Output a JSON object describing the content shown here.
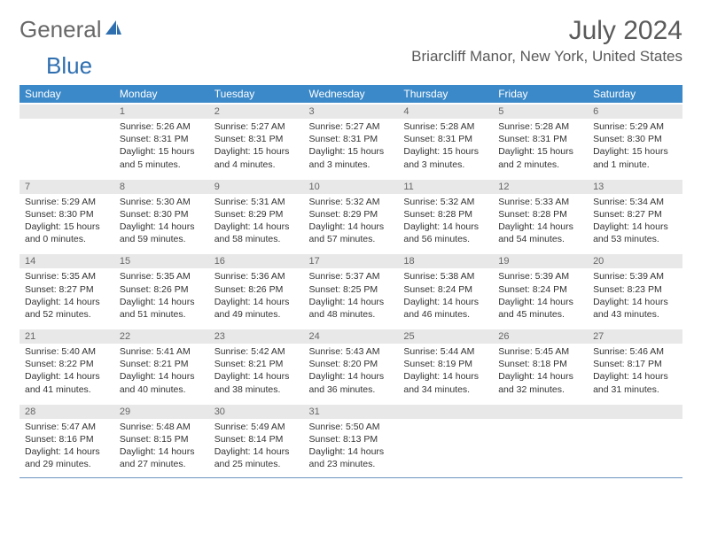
{
  "brand": {
    "part1": "General",
    "part2": "Blue"
  },
  "title": "July 2024",
  "location": "Briarcliff Manor, New York, United States",
  "headers": [
    "Sunday",
    "Monday",
    "Tuesday",
    "Wednesday",
    "Thursday",
    "Friday",
    "Saturday"
  ],
  "colors": {
    "header_bg": "#3b89c9",
    "numrow_bg": "#e8e8e8",
    "rule": "#6b94bf",
    "text": "#333333",
    "title": "#5a5a5a"
  },
  "weeks": [
    {
      "nums": [
        "",
        "1",
        "2",
        "3",
        "4",
        "5",
        "6"
      ],
      "cells": [
        {
          "sunrise": "",
          "sunset": "",
          "daylight": ""
        },
        {
          "sunrise": "Sunrise: 5:26 AM",
          "sunset": "Sunset: 8:31 PM",
          "daylight": "Daylight: 15 hours and 5 minutes."
        },
        {
          "sunrise": "Sunrise: 5:27 AM",
          "sunset": "Sunset: 8:31 PM",
          "daylight": "Daylight: 15 hours and 4 minutes."
        },
        {
          "sunrise": "Sunrise: 5:27 AM",
          "sunset": "Sunset: 8:31 PM",
          "daylight": "Daylight: 15 hours and 3 minutes."
        },
        {
          "sunrise": "Sunrise: 5:28 AM",
          "sunset": "Sunset: 8:31 PM",
          "daylight": "Daylight: 15 hours and 3 minutes."
        },
        {
          "sunrise": "Sunrise: 5:28 AM",
          "sunset": "Sunset: 8:31 PM",
          "daylight": "Daylight: 15 hours and 2 minutes."
        },
        {
          "sunrise": "Sunrise: 5:29 AM",
          "sunset": "Sunset: 8:30 PM",
          "daylight": "Daylight: 15 hours and 1 minute."
        }
      ]
    },
    {
      "nums": [
        "7",
        "8",
        "9",
        "10",
        "11",
        "12",
        "13"
      ],
      "cells": [
        {
          "sunrise": "Sunrise: 5:29 AM",
          "sunset": "Sunset: 8:30 PM",
          "daylight": "Daylight: 15 hours and 0 minutes."
        },
        {
          "sunrise": "Sunrise: 5:30 AM",
          "sunset": "Sunset: 8:30 PM",
          "daylight": "Daylight: 14 hours and 59 minutes."
        },
        {
          "sunrise": "Sunrise: 5:31 AM",
          "sunset": "Sunset: 8:29 PM",
          "daylight": "Daylight: 14 hours and 58 minutes."
        },
        {
          "sunrise": "Sunrise: 5:32 AM",
          "sunset": "Sunset: 8:29 PM",
          "daylight": "Daylight: 14 hours and 57 minutes."
        },
        {
          "sunrise": "Sunrise: 5:32 AM",
          "sunset": "Sunset: 8:28 PM",
          "daylight": "Daylight: 14 hours and 56 minutes."
        },
        {
          "sunrise": "Sunrise: 5:33 AM",
          "sunset": "Sunset: 8:28 PM",
          "daylight": "Daylight: 14 hours and 54 minutes."
        },
        {
          "sunrise": "Sunrise: 5:34 AM",
          "sunset": "Sunset: 8:27 PM",
          "daylight": "Daylight: 14 hours and 53 minutes."
        }
      ]
    },
    {
      "nums": [
        "14",
        "15",
        "16",
        "17",
        "18",
        "19",
        "20"
      ],
      "cells": [
        {
          "sunrise": "Sunrise: 5:35 AM",
          "sunset": "Sunset: 8:27 PM",
          "daylight": "Daylight: 14 hours and 52 minutes."
        },
        {
          "sunrise": "Sunrise: 5:35 AM",
          "sunset": "Sunset: 8:26 PM",
          "daylight": "Daylight: 14 hours and 51 minutes."
        },
        {
          "sunrise": "Sunrise: 5:36 AM",
          "sunset": "Sunset: 8:26 PM",
          "daylight": "Daylight: 14 hours and 49 minutes."
        },
        {
          "sunrise": "Sunrise: 5:37 AM",
          "sunset": "Sunset: 8:25 PM",
          "daylight": "Daylight: 14 hours and 48 minutes."
        },
        {
          "sunrise": "Sunrise: 5:38 AM",
          "sunset": "Sunset: 8:24 PM",
          "daylight": "Daylight: 14 hours and 46 minutes."
        },
        {
          "sunrise": "Sunrise: 5:39 AM",
          "sunset": "Sunset: 8:24 PM",
          "daylight": "Daylight: 14 hours and 45 minutes."
        },
        {
          "sunrise": "Sunrise: 5:39 AM",
          "sunset": "Sunset: 8:23 PM",
          "daylight": "Daylight: 14 hours and 43 minutes."
        }
      ]
    },
    {
      "nums": [
        "21",
        "22",
        "23",
        "24",
        "25",
        "26",
        "27"
      ],
      "cells": [
        {
          "sunrise": "Sunrise: 5:40 AM",
          "sunset": "Sunset: 8:22 PM",
          "daylight": "Daylight: 14 hours and 41 minutes."
        },
        {
          "sunrise": "Sunrise: 5:41 AM",
          "sunset": "Sunset: 8:21 PM",
          "daylight": "Daylight: 14 hours and 40 minutes."
        },
        {
          "sunrise": "Sunrise: 5:42 AM",
          "sunset": "Sunset: 8:21 PM",
          "daylight": "Daylight: 14 hours and 38 minutes."
        },
        {
          "sunrise": "Sunrise: 5:43 AM",
          "sunset": "Sunset: 8:20 PM",
          "daylight": "Daylight: 14 hours and 36 minutes."
        },
        {
          "sunrise": "Sunrise: 5:44 AM",
          "sunset": "Sunset: 8:19 PM",
          "daylight": "Daylight: 14 hours and 34 minutes."
        },
        {
          "sunrise": "Sunrise: 5:45 AM",
          "sunset": "Sunset: 8:18 PM",
          "daylight": "Daylight: 14 hours and 32 minutes."
        },
        {
          "sunrise": "Sunrise: 5:46 AM",
          "sunset": "Sunset: 8:17 PM",
          "daylight": "Daylight: 14 hours and 31 minutes."
        }
      ]
    },
    {
      "nums": [
        "28",
        "29",
        "30",
        "31",
        "",
        "",
        ""
      ],
      "cells": [
        {
          "sunrise": "Sunrise: 5:47 AM",
          "sunset": "Sunset: 8:16 PM",
          "daylight": "Daylight: 14 hours and 29 minutes."
        },
        {
          "sunrise": "Sunrise: 5:48 AM",
          "sunset": "Sunset: 8:15 PM",
          "daylight": "Daylight: 14 hours and 27 minutes."
        },
        {
          "sunrise": "Sunrise: 5:49 AM",
          "sunset": "Sunset: 8:14 PM",
          "daylight": "Daylight: 14 hours and 25 minutes."
        },
        {
          "sunrise": "Sunrise: 5:50 AM",
          "sunset": "Sunset: 8:13 PM",
          "daylight": "Daylight: 14 hours and 23 minutes."
        },
        {
          "sunrise": "",
          "sunset": "",
          "daylight": ""
        },
        {
          "sunrise": "",
          "sunset": "",
          "daylight": ""
        },
        {
          "sunrise": "",
          "sunset": "",
          "daylight": ""
        }
      ]
    }
  ]
}
